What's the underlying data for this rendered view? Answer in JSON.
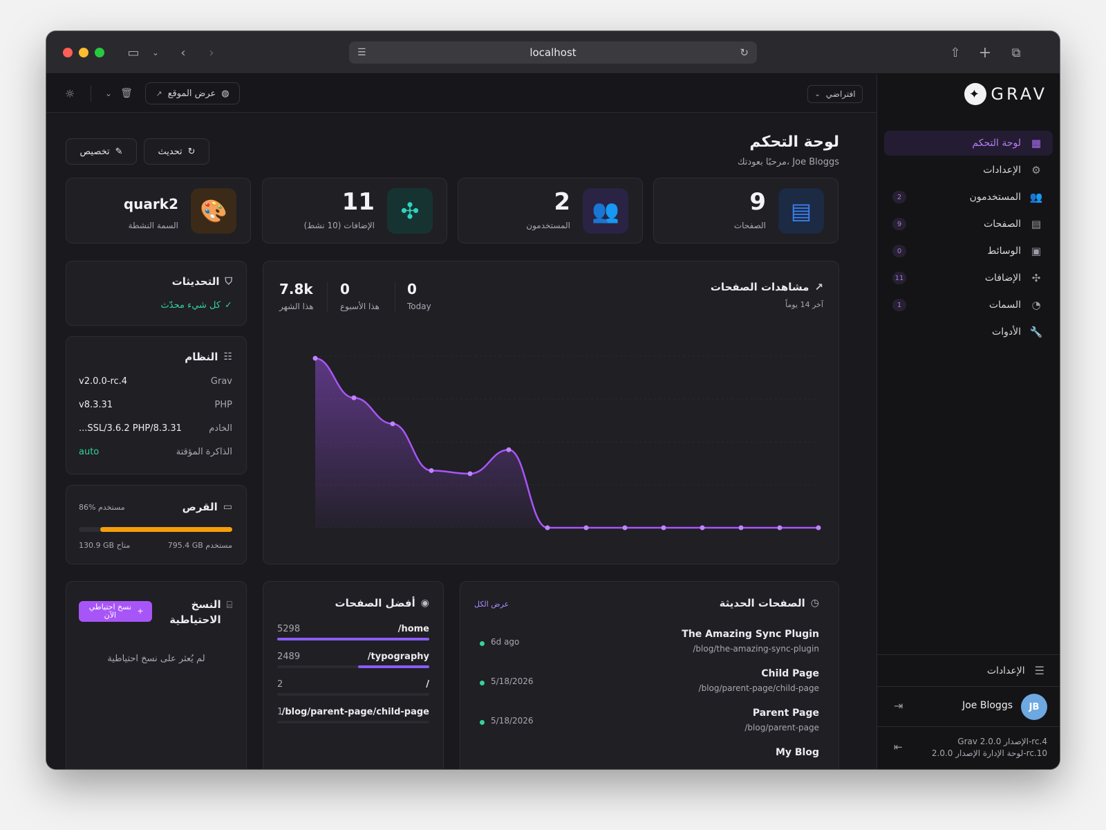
{
  "browser": {
    "url": "localhost"
  },
  "topbar": {
    "view_site": "عرض الموقع",
    "default_label": "افتراضي"
  },
  "sidebar": {
    "logo_text": "GRAV",
    "items": [
      {
        "label": "لوحة التحكم",
        "icon": "dashboard-icon",
        "badge": "",
        "active": true
      },
      {
        "label": "الإعدادات",
        "icon": "gear-icon",
        "badge": ""
      },
      {
        "label": "المستخدمون",
        "icon": "users-icon",
        "badge": "2"
      },
      {
        "label": "الصفحات",
        "icon": "page-icon",
        "badge": "9"
      },
      {
        "label": "الوسائط",
        "icon": "image-icon",
        "badge": "0"
      },
      {
        "label": "الإضافات",
        "icon": "puzzle-icon",
        "badge": "11"
      },
      {
        "label": "السمات",
        "icon": "palette-icon",
        "badge": "1"
      },
      {
        "label": "الأدوات",
        "icon": "wrench-icon",
        "badge": ""
      }
    ],
    "settings_label": "الإعدادات",
    "user": {
      "name": "Joe Bloggs",
      "initials": "JB"
    },
    "version_grav": "Grav الإصدار 2.0.0-rc.4",
    "version_admin": "لوحة الإدارة الإصدار 2.0.0-rc.10"
  },
  "header": {
    "title": "لوحة التحكم",
    "subtitle": "مرحبًا بعودتك، Joe Bloggs",
    "customize": "تخصيص",
    "refresh": "تحديث"
  },
  "stats": {
    "pages": {
      "value": "9",
      "label": "الصفحات"
    },
    "users": {
      "value": "2",
      "label": "المستخدمون"
    },
    "plugins": {
      "value": "11",
      "label": "الإضافات (10 نشط)"
    },
    "theme": {
      "value": "quark2",
      "label": "السمة النشطة"
    }
  },
  "updates": {
    "title": "التحديثات",
    "status": "كل شيء محدّث"
  },
  "system": {
    "title": "النظام",
    "rows": [
      {
        "key": "Grav",
        "value": "v2.0.0-rc.4"
      },
      {
        "key": "PHP",
        "value": "v8.3.31"
      },
      {
        "key": "الخادم",
        "value": "...SSL/3.6.2 PHP/8.3.31"
      },
      {
        "key": "الذاكرة المؤقتة",
        "value": "auto"
      }
    ]
  },
  "disk": {
    "title": "القرص",
    "used_percent_label": "86% مستخدم",
    "used_fraction": 0.86,
    "used_label": "795.4 GB مستخدم",
    "free_label": "130.9 GB متاح"
  },
  "page_views": {
    "title": "مشاهدات الصفحات",
    "subtitle": "آخر 14 يوماً",
    "month": {
      "value": "7.8k",
      "label": "هذا الشهر"
    },
    "week": {
      "value": "0",
      "label": "هذا الأسبوع"
    },
    "today": {
      "value": "0",
      "label": "Today"
    }
  },
  "chart_data": {
    "type": "area",
    "values": [
      1630,
      1250,
      1000,
      550,
      520,
      750,
      0,
      0,
      0,
      0,
      0,
      0,
      0,
      0
    ],
    "ylim": [
      0,
      1650
    ],
    "grid": true,
    "color": "#a855f7"
  },
  "backups": {
    "title": "النسخ الاحتياطية",
    "button": "نسخ احتياطي الآن",
    "empty": "لم يُعثر على نسخ احتياطية"
  },
  "top_pages": {
    "title": "أفضل الصفحات",
    "rows": [
      {
        "path": "/home",
        "count": "5298",
        "fraction": 1.0
      },
      {
        "path": "/typography",
        "count": "2489",
        "fraction": 0.47
      },
      {
        "path": "/",
        "count": "2",
        "fraction": 0.0
      },
      {
        "path": "/blog/parent-page/child-page",
        "count": "1",
        "fraction": 0.0
      }
    ]
  },
  "recent_pages": {
    "title": "الصفحات الحديثة",
    "view_all": "عرض الكل",
    "rows": [
      {
        "title": "The Amazing Sync Plugin",
        "path": "/blog/the-amazing-sync-plugin",
        "date": "6d ago"
      },
      {
        "title": "Child Page",
        "path": "/blog/parent-page/child-page",
        "date": "5/18/2026"
      },
      {
        "title": "Parent Page",
        "path": "/blog/parent-page",
        "date": "5/18/2026"
      },
      {
        "title": "My Blog",
        "path": "",
        "date": ""
      }
    ]
  }
}
